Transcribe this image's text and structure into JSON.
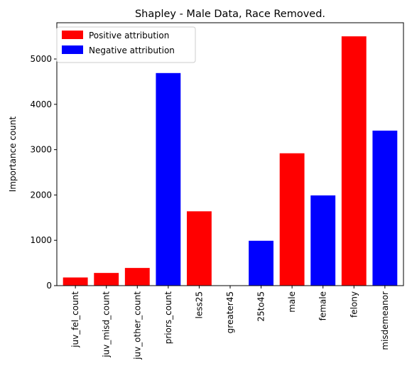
{
  "chart_data": {
    "type": "bar",
    "title": "Shapley - Male Data, Race Removed.",
    "xlabel": "",
    "ylabel": "Importance count",
    "ylim": [
      0,
      5800
    ],
    "yticks": [
      0,
      1000,
      2000,
      3000,
      4000,
      5000
    ],
    "categories": [
      "juv_fel_count",
      "juv_misd_count",
      "juv_other_count",
      "priors_count",
      "less25",
      "greater45",
      "25to45",
      "male",
      "female",
      "felony",
      "misdemeanor"
    ],
    "values": [
      180,
      280,
      390,
      4690,
      1640,
      0,
      990,
      2920,
      1990,
      5500,
      3420
    ],
    "bar_attribution": [
      "positive",
      "positive",
      "positive",
      "negative",
      "positive",
      "positive",
      "negative",
      "positive",
      "negative",
      "positive",
      "negative"
    ],
    "legend": {
      "placement": "top-left",
      "entries": [
        {
          "key": "positive",
          "label": "Positive attribution",
          "color": "#ff0000"
        },
        {
          "key": "negative",
          "label": "Negative attribution",
          "color": "#0000ff"
        }
      ]
    },
    "grid": false
  }
}
